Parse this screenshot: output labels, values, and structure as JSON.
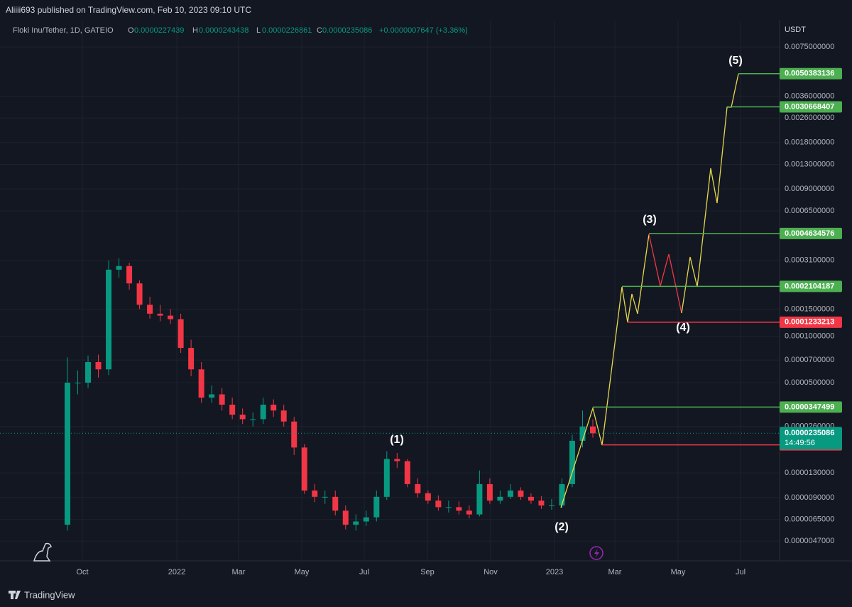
{
  "header": {
    "publisher": "Aliiii693 published on TradingView.com, Feb 10, 2023 09:10 UTC"
  },
  "legend": {
    "symbol": "Floki Inu/Tether, 1D, GATEIO",
    "open_label": "O",
    "open": "0.0000227439",
    "high_label": "H",
    "high": "0.0000243438",
    "low_label": "L",
    "low": "0.0000226861",
    "close_label": "C",
    "close": "0.0000235086",
    "change": "+0.0000007647 (+3.36%)"
  },
  "price_axis": {
    "unit": "USDT",
    "ylim": [
      3.5e-06,
      0.011
    ],
    "log_scale": true,
    "ticks": [
      {
        "value": 0.0075,
        "label": "0.0075000000"
      },
      {
        "value": 0.0036,
        "label": "0.0036000000"
      },
      {
        "value": 0.0026,
        "label": "0.0026000000"
      },
      {
        "value": 0.0018,
        "label": "0.0018000000"
      },
      {
        "value": 0.0013,
        "label": "0.0013000000"
      },
      {
        "value": 0.0009,
        "label": "0.0009000000"
      },
      {
        "value": 0.00065,
        "label": "0.0006500000"
      },
      {
        "value": 0.00031,
        "label": "0.0003100000"
      },
      {
        "value": 0.00015,
        "label": "0.0001500000"
      },
      {
        "value": 0.0001,
        "label": "0.0001000000"
      },
      {
        "value": 7e-05,
        "label": "0.0000700000"
      },
      {
        "value": 5e-05,
        "label": "0.0000500000"
      },
      {
        "value": 2.6e-05,
        "label": "0.0000260000"
      },
      {
        "value": 1.3e-05,
        "label": "0.0000130000"
      },
      {
        "value": 9e-06,
        "label": "0.0000090000"
      },
      {
        "value": 6.5e-06,
        "label": "0.0000065000"
      },
      {
        "value": 4.7e-06,
        "label": "0.0000047000"
      }
    ]
  },
  "time_axis": {
    "labels": [
      "Oct",
      "2022",
      "Mar",
      "May",
      "Jul",
      "Sep",
      "Nov",
      "2023",
      "Mar",
      "May",
      "Jul"
    ]
  },
  "candles": {
    "up_color": "#089981",
    "down_color": "#f23645",
    "open": [
      6e-06,
      5e-05,
      5e-05,
      6.8e-05,
      6.1e-05,
      0.00027,
      0.000285,
      0.00022,
      0.00016,
      0.00014,
      0.000136,
      0.000129,
      8.4e-05,
      6.1e-05,
      4e-05,
      4.2e-05,
      3.6e-05,
      3.1e-05,
      2.9e-05,
      2.9e-05,
      3.6e-05,
      3.3e-05,
      2.8e-05,
      1.9e-05,
      1e-05,
      9.1e-06,
      9.1e-06,
      7.4e-06,
      6e-06,
      6.3e-06,
      6.7e-06,
      9.1e-06,
      1.6e-05,
      1.55e-05,
      1.1e-05,
      9.6e-06,
      8.6e-06,
      7.8e-06,
      7.8e-06,
      7.4e-06,
      7e-06,
      1.1e-05,
      8.6e-06,
      9.1e-06,
      1e-05,
      9.1e-06,
      8.6e-06,
      8e-06,
      8e-06,
      1.1e-05,
      2.1e-05,
      2.6e-05
    ],
    "high": [
      7.3e-05,
      6e-05,
      7.5e-05,
      7.6e-05,
      0.00031,
      0.00032,
      0.0003,
      0.00023,
      0.00018,
      0.00016,
      0.00015,
      0.00014,
      9.5e-05,
      6.8e-05,
      4.8e-05,
      4.6e-05,
      4e-05,
      3.4e-05,
      3.2e-05,
      4e-05,
      3.9e-05,
      3.6e-05,
      3e-05,
      2e-05,
      1.1e-05,
      1e-05,
      1e-05,
      8e-06,
      7e-06,
      7.4e-06,
      1e-05,
      1.8e-05,
      1.75e-05,
      1.6e-05,
      1.2e-05,
      1e-05,
      9.3e-06,
      8.6e-06,
      8.5e-06,
      8e-06,
      1.35e-05,
      1.2e-05,
      1e-05,
      1.1e-05,
      1.05e-05,
      9.6e-06,
      9.2e-06,
      8.8e-06,
      1.2e-05,
      2.3e-05,
      3.3e-05,
      2.9e-05
    ],
    "low": [
      5.5e-06,
      4.2e-05,
      4.6e-05,
      5.4e-05,
      5.6e-05,
      0.00024,
      0.0002,
      0.00015,
      0.00013,
      0.000125,
      0.00012,
      7.8e-05,
      5.5e-05,
      3.7e-05,
      3.7e-05,
      3.3e-05,
      2.9e-05,
      2.7e-05,
      2.6e-05,
      2.7e-05,
      3e-05,
      2.6e-05,
      1.7e-05,
      9.5e-06,
      8.4e-06,
      8.2e-06,
      6.9e-06,
      5.6e-06,
      5.5e-06,
      5.9e-06,
      6.3e-06,
      8.7e-06,
      1.4e-05,
      1.05e-05,
      9e-06,
      8.2e-06,
      7.4e-06,
      7.2e-06,
      7e-06,
      6.6e-06,
      6.8e-06,
      8.2e-06,
      8.2e-06,
      8.8e-06,
      8.7e-06,
      8.2e-06,
      7.6e-06,
      7.5e-06,
      7.7e-06,
      1.05e-05,
      1.9e-05,
      2.2e-05
    ],
    "close": [
      5e-05,
      5e-05,
      6.8e-05,
      6.1e-05,
      0.00027,
      0.000285,
      0.00022,
      0.00016,
      0.00014,
      0.000136,
      0.000129,
      8.4e-05,
      6.1e-05,
      4e-05,
      4.2e-05,
      3.6e-05,
      3.1e-05,
      2.9e-05,
      2.9e-05,
      3.6e-05,
      3.3e-05,
      2.8e-05,
      1.9e-05,
      1e-05,
      9.1e-06,
      9.1e-06,
      7.4e-06,
      6e-06,
      6.3e-06,
      6.7e-06,
      9.1e-06,
      1.6e-05,
      1.55e-05,
      1.1e-05,
      9.6e-06,
      8.6e-06,
      7.8e-06,
      7.8e-06,
      7.4e-06,
      7e-06,
      1.1e-05,
      8.6e-06,
      9.1e-06,
      1e-05,
      9.1e-06,
      8.6e-06,
      8e-06,
      8e-06,
      1.1e-05,
      2.1e-05,
      2.6e-05,
      2.35e-05
    ]
  },
  "levels": [
    {
      "value": 0.0050383136,
      "color": "#4caf50"
    },
    {
      "value": 0.0030668407,
      "color": "#4caf50"
    },
    {
      "value": 0.0004634576,
      "color": "#4caf50"
    },
    {
      "value": 0.0002104187,
      "color": "#4caf50"
    },
    {
      "value": 0.0001233213,
      "color": "#f23645"
    },
    {
      "value": 3.47499e-05,
      "color": "#4caf50"
    },
    {
      "value": 1.97558e-05,
      "color": "#f23645"
    }
  ],
  "last_price": {
    "value": 2.35086e-05,
    "countdown": "14:49:56",
    "color": "#089981"
  },
  "wave_labels": [
    "(1)",
    "(2)",
    "(3)",
    "(4)",
    "(5)"
  ],
  "footer": {
    "brand": "TradingView"
  }
}
